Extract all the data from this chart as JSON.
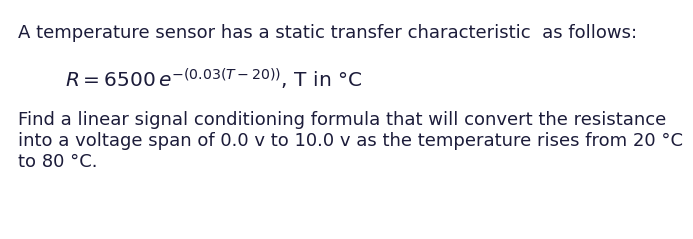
{
  "line1": "A temperature sensor has a static transfer characteristic  as follows:",
  "line3": "Find a linear signal conditioning formula that will convert the resistance",
  "line4": "into a voltage span of 0.0 v to 10.0 v as the temperature rises from 20 °C",
  "line5": "to 80 °C.",
  "formula_math": "$R=6500\\,e^{-(0.03(T-20))}$, T in °C",
  "font_family": "DejaVu Sans",
  "font_size_main": 13.0,
  "font_size_formula": 14.5,
  "text_color": "#1c1c3a",
  "background_color": "#ffffff"
}
